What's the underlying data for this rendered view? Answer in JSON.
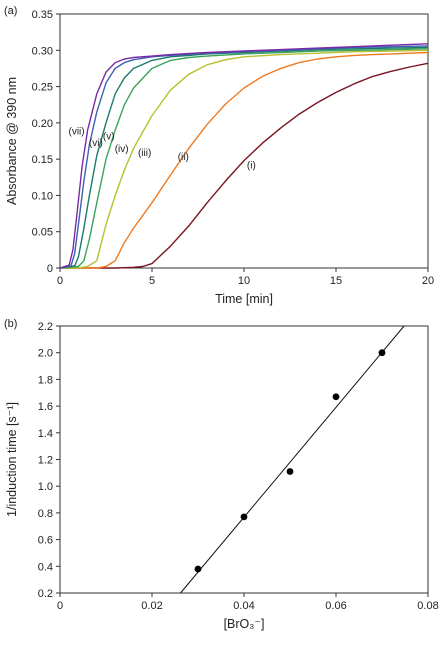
{
  "chart_data": [
    {
      "panel": "(a)",
      "type": "line",
      "xlabel": "Time [min]",
      "ylabel": "Absorbance @ 390 nm",
      "xlim": [
        0,
        20
      ],
      "ylim": [
        0,
        0.35
      ],
      "xticks": [
        "0",
        "5",
        "10",
        "15",
        "20"
      ],
      "yticks": [
        "0",
        "0.05",
        "0.10",
        "0.15",
        "0.20",
        "0.25",
        "0.30",
        "0.35"
      ],
      "grid": false,
      "series": [
        {
          "name": "(i)",
          "color": "#7a1420",
          "x": [
            0,
            2,
            3,
            4,
            4.5,
            5,
            5.5,
            6,
            7,
            8,
            9,
            10,
            11,
            12,
            13,
            14,
            15,
            16,
            17,
            18,
            19,
            20
          ],
          "y": [
            0,
            0,
            0,
            0.001,
            0.002,
            0.006,
            0.018,
            0.03,
            0.058,
            0.09,
            0.12,
            0.148,
            0.172,
            0.193,
            0.212,
            0.228,
            0.242,
            0.254,
            0.264,
            0.271,
            0.277,
            0.282
          ]
        },
        {
          "name": "(ii)",
          "color": "#f07a20",
          "x": [
            0,
            2,
            2.5,
            3,
            3.5,
            4,
            5,
            6,
            7,
            8,
            9,
            10,
            11,
            12,
            13,
            14,
            15,
            16,
            17,
            18,
            20
          ],
          "y": [
            0,
            0,
            0.002,
            0.01,
            0.035,
            0.055,
            0.09,
            0.128,
            0.165,
            0.198,
            0.226,
            0.248,
            0.264,
            0.275,
            0.283,
            0.288,
            0.291,
            0.293,
            0.294,
            0.295,
            0.297
          ]
        },
        {
          "name": "(iii)",
          "color": "#b8c030",
          "x": [
            0,
            1,
            1.5,
            2,
            2.5,
            3,
            3.5,
            4,
            5,
            6,
            7,
            8,
            9,
            10,
            12,
            14,
            16,
            18,
            20
          ],
          "y": [
            0,
            0,
            0.002,
            0.01,
            0.06,
            0.1,
            0.135,
            0.165,
            0.21,
            0.245,
            0.267,
            0.28,
            0.287,
            0.291,
            0.294,
            0.296,
            0.298,
            0.299,
            0.3
          ]
        },
        {
          "name": "(iv)",
          "color": "#3aa45a",
          "x": [
            0,
            1,
            1.3,
            1.6,
            2,
            2.5,
            3,
            3.5,
            4,
            5,
            6,
            7,
            8,
            10,
            12,
            14,
            16,
            18,
            20
          ],
          "y": [
            0,
            0.002,
            0.01,
            0.04,
            0.09,
            0.15,
            0.19,
            0.225,
            0.248,
            0.275,
            0.286,
            0.29,
            0.292,
            0.295,
            0.297,
            0.299,
            0.3,
            0.301,
            0.302
          ]
        },
        {
          "name": "(v)",
          "color": "#1d7a6a",
          "x": [
            0,
            0.8,
            1,
            1.3,
            1.6,
            2,
            2.5,
            3,
            3.5,
            4,
            5,
            6,
            7,
            8,
            10,
            12,
            14,
            16,
            18,
            20
          ],
          "y": [
            0,
            0.003,
            0.015,
            0.055,
            0.1,
            0.155,
            0.2,
            0.24,
            0.262,
            0.275,
            0.286,
            0.291,
            0.293,
            0.295,
            0.297,
            0.299,
            0.301,
            0.302,
            0.303,
            0.304
          ]
        },
        {
          "name": "(vi)",
          "color": "#3c62b0",
          "x": [
            0,
            0.6,
            0.8,
            1,
            1.3,
            1.6,
            2,
            2.5,
            3,
            3.5,
            4,
            5,
            6,
            8,
            10,
            12,
            14,
            16,
            18,
            20
          ],
          "y": [
            0,
            0.003,
            0.02,
            0.06,
            0.12,
            0.17,
            0.215,
            0.255,
            0.275,
            0.283,
            0.287,
            0.291,
            0.293,
            0.296,
            0.298,
            0.3,
            0.302,
            0.304,
            0.305,
            0.306
          ]
        },
        {
          "name": "(vii)",
          "color": "#7a2aa8",
          "x": [
            0,
            0.5,
            0.7,
            0.9,
            1.2,
            1.5,
            2,
            2.5,
            3,
            3.5,
            4,
            5,
            6,
            8,
            10,
            12,
            14,
            16,
            18,
            20
          ],
          "y": [
            0,
            0.004,
            0.025,
            0.07,
            0.14,
            0.19,
            0.24,
            0.27,
            0.283,
            0.288,
            0.29,
            0.292,
            0.294,
            0.297,
            0.299,
            0.301,
            0.303,
            0.305,
            0.307,
            0.309
          ]
        }
      ],
      "annotations": [
        {
          "text": "(i)",
          "x": 10.4,
          "y": 0.137
        },
        {
          "text": "(ii)",
          "x": 6.7,
          "y": 0.149
        },
        {
          "text": "(iii)",
          "x": 4.6,
          "y": 0.154
        },
        {
          "text": "(iv)",
          "x": 3.35,
          "y": 0.16
        },
        {
          "text": "(v)",
          "x": 2.65,
          "y": 0.177
        },
        {
          "text": "(vi)",
          "x": 1.95,
          "y": 0.168
        },
        {
          "text": "(vii)",
          "x": 0.9,
          "y": 0.184
        }
      ]
    },
    {
      "panel": "(b)",
      "type": "scatter",
      "xlabel": "[BrO₃⁻]",
      "ylabel": "1/induction time [s⁻¹]",
      "xlim": [
        0,
        0.08
      ],
      "ylim": [
        0.2,
        2.2
      ],
      "xticks": [
        "0",
        "0.02",
        "0.04",
        "0.06",
        "0.08"
      ],
      "yticks": [
        "0.2",
        "0.4",
        "0.6",
        "0.8",
        "1.0",
        "1.2",
        "1.4",
        "1.6",
        "1.8",
        "2.0",
        "2.2"
      ],
      "grid": false,
      "points": {
        "x": [
          0.03,
          0.04,
          0.05,
          0.06,
          0.07
        ],
        "y": [
          0.38,
          0.77,
          1.11,
          1.67,
          2.0
        ]
      },
      "fit_line": {
        "x": [
          0.0262,
          0.0748
        ],
        "y": [
          0.2,
          2.2
        ]
      }
    }
  ]
}
